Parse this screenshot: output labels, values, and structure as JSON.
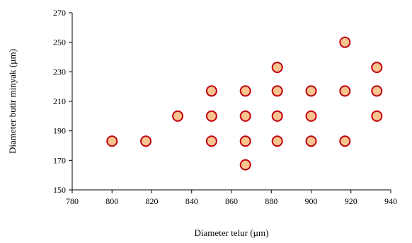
{
  "chart_data": {
    "type": "scatter",
    "title": "",
    "xlabel": "Diameter telur (µm)",
    "ylabel": "Diameter butir minyak (µm)",
    "xlim": [
      780,
      940
    ],
    "ylim": [
      150,
      270
    ],
    "x_ticks": [
      780,
      800,
      820,
      840,
      860,
      880,
      900,
      920,
      940
    ],
    "y_ticks": [
      150,
      170,
      190,
      210,
      230,
      250,
      270
    ],
    "grid": false,
    "legend": "none",
    "marker_fill": "#f8c48f",
    "marker_edge": "#c0000f",
    "points": [
      {
        "x": 800,
        "y": 183
      },
      {
        "x": 817,
        "y": 183
      },
      {
        "x": 833,
        "y": 200
      },
      {
        "x": 850,
        "y": 217
      },
      {
        "x": 850,
        "y": 200
      },
      {
        "x": 850,
        "y": 183
      },
      {
        "x": 867,
        "y": 217
      },
      {
        "x": 867,
        "y": 200
      },
      {
        "x": 867,
        "y": 183
      },
      {
        "x": 867,
        "y": 167
      },
      {
        "x": 883,
        "y": 233
      },
      {
        "x": 883,
        "y": 217
      },
      {
        "x": 883,
        "y": 200
      },
      {
        "x": 883,
        "y": 183
      },
      {
        "x": 900,
        "y": 217
      },
      {
        "x": 900,
        "y": 200
      },
      {
        "x": 900,
        "y": 183
      },
      {
        "x": 917,
        "y": 250
      },
      {
        "x": 917,
        "y": 217
      },
      {
        "x": 917,
        "y": 183
      },
      {
        "x": 933,
        "y": 233
      },
      {
        "x": 933,
        "y": 217
      },
      {
        "x": 933,
        "y": 200
      }
    ]
  }
}
